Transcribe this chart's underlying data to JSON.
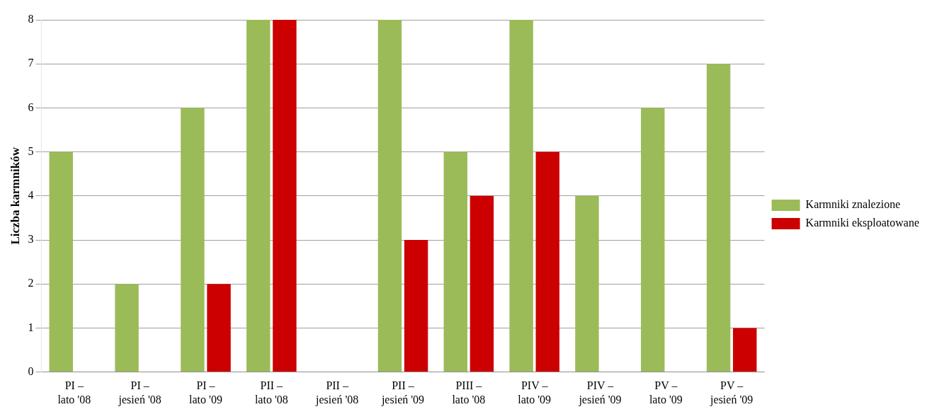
{
  "chart_data": {
    "type": "bar",
    "ylabel": "Liczba karmników",
    "categories": [
      "PI – lato '08",
      "PI – jesień '08",
      "PI – lato '09",
      "PII – lato '08",
      "PII – jesień '08",
      "PII – jesień '09",
      "PIII – lato '08",
      "PIV – lato '09",
      "PIV – jesień '09",
      "PV – lato '09",
      "PV – jesień '09"
    ],
    "series": [
      {
        "name": "Karmniki znalezione",
        "color": "#9bbb59",
        "values": [
          5,
          2,
          6,
          8,
          0,
          8,
          5,
          8,
          4,
          6,
          7
        ]
      },
      {
        "name": "Karmniki eksploatowane",
        "color": "#cc0000",
        "values": [
          0,
          0,
          2,
          8,
          0,
          3,
          4,
          5,
          0,
          0,
          1
        ]
      }
    ],
    "ylim": [
      0,
      8
    ],
    "yticks": [
      0,
      1,
      2,
      3,
      4,
      5,
      6,
      7,
      8
    ],
    "grid": "y",
    "legend": "right"
  }
}
